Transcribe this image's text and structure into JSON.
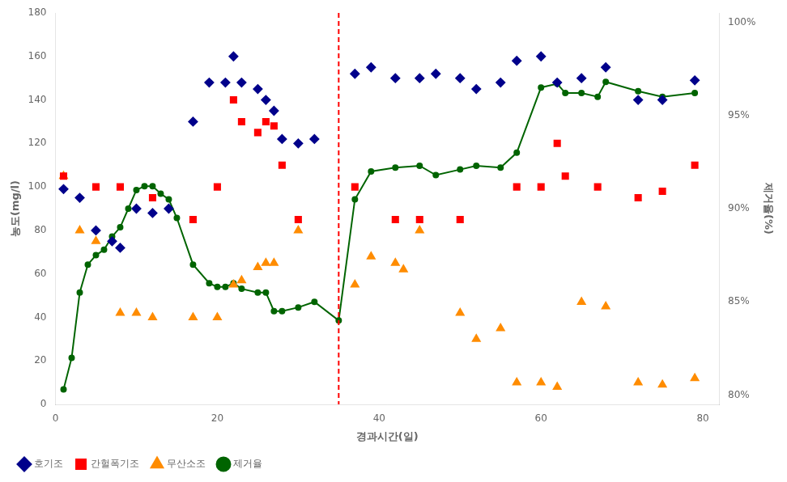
{
  "chart_data": {
    "type": "scatter",
    "x_label": "경과시간(일)",
    "y_label": "농도(mg/l)",
    "y2_label": "제거율(%)",
    "xlim": [
      0,
      82
    ],
    "xticks": [
      0,
      20,
      40,
      60,
      80
    ],
    "ylim": [
      0,
      180
    ],
    "yticks": [
      0,
      20,
      40,
      60,
      80,
      100,
      120,
      140,
      160,
      180
    ],
    "y2lim": [
      0.795,
      1.005
    ],
    "y2ticks": [
      {
        "value": 0.8,
        "label": "80%"
      },
      {
        "value": 0.85,
        "label": "85%"
      },
      {
        "value": 0.9,
        "label": "90%"
      },
      {
        "value": 0.95,
        "label": "95%"
      },
      {
        "value": 1.0,
        "label": "100%"
      }
    ],
    "grid": false,
    "legend": "lower left",
    "vlines": [
      {
        "x": 35,
        "color": "#ff0000",
        "line_style": "dashed"
      }
    ],
    "series": [
      {
        "name": "호기조",
        "type": "scatter",
        "color": "#00008B",
        "marker": "diamond",
        "x": [
          1,
          3,
          5,
          7,
          8,
          10,
          12,
          14,
          17,
          19,
          21,
          22,
          23,
          25,
          26,
          27,
          28,
          30,
          32,
          37,
          39,
          42,
          45,
          47,
          50,
          52,
          55,
          57,
          60,
          62,
          65,
          68,
          72,
          75,
          79
        ],
        "values": [
          99,
          95,
          80,
          75,
          72,
          90,
          88,
          90,
          130,
          148,
          148,
          160,
          148,
          145,
          140,
          135,
          122,
          120,
          122,
          152,
          155,
          150,
          150,
          152,
          150,
          145,
          148,
          158,
          160,
          148,
          150,
          155,
          140,
          140,
          149
        ]
      },
      {
        "name": "간헐폭기조",
        "type": "scatter",
        "color": "#ff0000",
        "marker": "square",
        "x": [
          1,
          5,
          8,
          12,
          17,
          20,
          22,
          23,
          25,
          26,
          27,
          28,
          30,
          37,
          42,
          45,
          50,
          57,
          60,
          62,
          63,
          67,
          72,
          75,
          79
        ],
        "values": [
          105,
          100,
          100,
          95,
          85,
          100,
          140,
          130,
          125,
          130,
          128,
          110,
          85,
          100,
          85,
          85,
          85,
          100,
          100,
          120,
          105,
          100,
          95,
          98,
          110
        ]
      },
      {
        "name": "무산소조",
        "type": "scatter",
        "color": "#ff8c00",
        "marker": "triangle",
        "x": [
          1,
          3,
          5,
          8,
          10,
          12,
          17,
          20,
          22,
          23,
          25,
          26,
          27,
          30,
          37,
          39,
          42,
          43,
          45,
          50,
          52,
          55,
          57,
          60,
          62,
          65,
          68,
          72,
          75,
          79
        ],
        "values": [
          105,
          80,
          75,
          42,
          42,
          40,
          40,
          40,
          55,
          57,
          63,
          65,
          65,
          80,
          55,
          68,
          65,
          62,
          80,
          42,
          30,
          35,
          10,
          10,
          8,
          47,
          45,
          10,
          9,
          12
        ]
      },
      {
        "name": "제거율",
        "type": "line",
        "axis": "y2",
        "color": "#006400",
        "marker": "circle",
        "line_style": "solid",
        "x": [
          1,
          2,
          3,
          4,
          5,
          6,
          7,
          8,
          9,
          10,
          11,
          12,
          13,
          14,
          15,
          17,
          19,
          20,
          21,
          22,
          23,
          25,
          26,
          27,
          28,
          30,
          32,
          35,
          37,
          39,
          42,
          45,
          47,
          50,
          52,
          55,
          57,
          60,
          62,
          63,
          65,
          67,
          68,
          72,
          75,
          79
        ],
        "values": [
          0.803,
          0.82,
          0.855,
          0.87,
          0.875,
          0.878,
          0.885,
          0.89,
          0.9,
          0.91,
          0.912,
          0.912,
          0.908,
          0.905,
          0.895,
          0.87,
          0.86,
          0.858,
          0.858,
          0.86,
          0.857,
          0.855,
          0.855,
          0.845,
          0.845,
          0.847,
          0.85,
          0.84,
          0.905,
          0.92,
          0.922,
          0.923,
          0.918,
          0.921,
          0.923,
          0.922,
          0.93,
          0.965,
          0.967,
          0.962,
          0.962,
          0.96,
          0.968,
          0.963,
          0.96,
          0.962
        ]
      }
    ]
  }
}
